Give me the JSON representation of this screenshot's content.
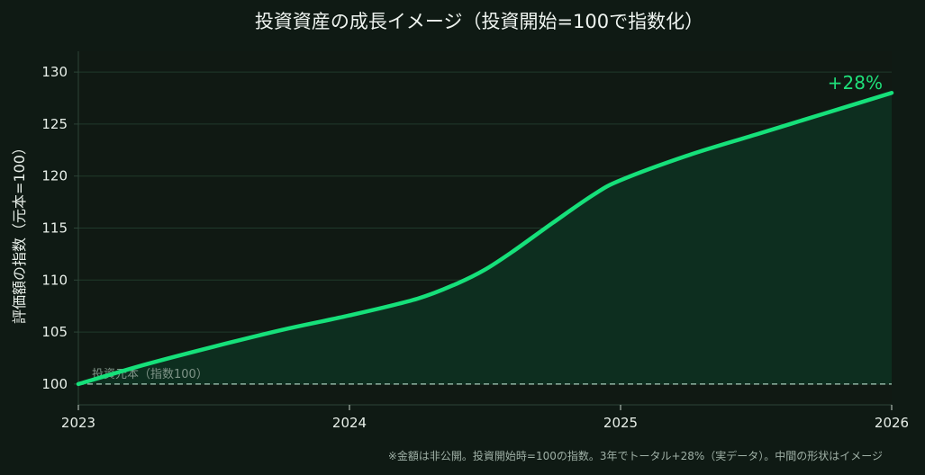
{
  "chart_data": {
    "type": "area",
    "title": "投資資産の成長イメージ（投資開始=100で指数化）",
    "ylabel": "評価額の指数（元本=100）",
    "xlabel": "",
    "xlim": [
      2023,
      2026
    ],
    "ylim": [
      98,
      132
    ],
    "x_ticks": [
      "2023",
      "2024",
      "2025",
      "2026"
    ],
    "y_ticks": [
      100,
      105,
      110,
      115,
      120,
      125,
      130
    ],
    "grid": "horizontal",
    "series": [
      {
        "x": [
          2023.0,
          2023.25,
          2023.5,
          2023.75,
          2024.0,
          2024.25,
          2024.4,
          2024.5,
          2024.6,
          2024.75,
          2024.9,
          2025.0,
          2025.25,
          2025.5,
          2025.75,
          2026.0
        ],
        "values": [
          100.0,
          101.9,
          103.6,
          105.2,
          106.6,
          108.2,
          109.7,
          111.0,
          112.7,
          115.5,
          118.2,
          119.6,
          122.0,
          124.0,
          126.0,
          128.0
        ],
        "color": "#16e07a",
        "fill": "#0d2e1f"
      }
    ],
    "baseline": {
      "value": 100,
      "label": "投資元本（指数100）",
      "color": "#8fb3a2"
    },
    "annotation": {
      "text": "+28%",
      "x": 2026.0,
      "y": 128.0,
      "color": "#1fe07a"
    },
    "footnote": "※金額は非公開。投資開始時=100の指数。3年でトータル+28%（実データ）。中間の形状はイメージ"
  },
  "colors": {
    "background": "#0f1a14",
    "plot_background": "#101913",
    "grid": "#1f3a2b",
    "axis": "#2c4437",
    "text": "#e8efe9",
    "line": "#16e07a",
    "area": "#0d2e1f"
  }
}
